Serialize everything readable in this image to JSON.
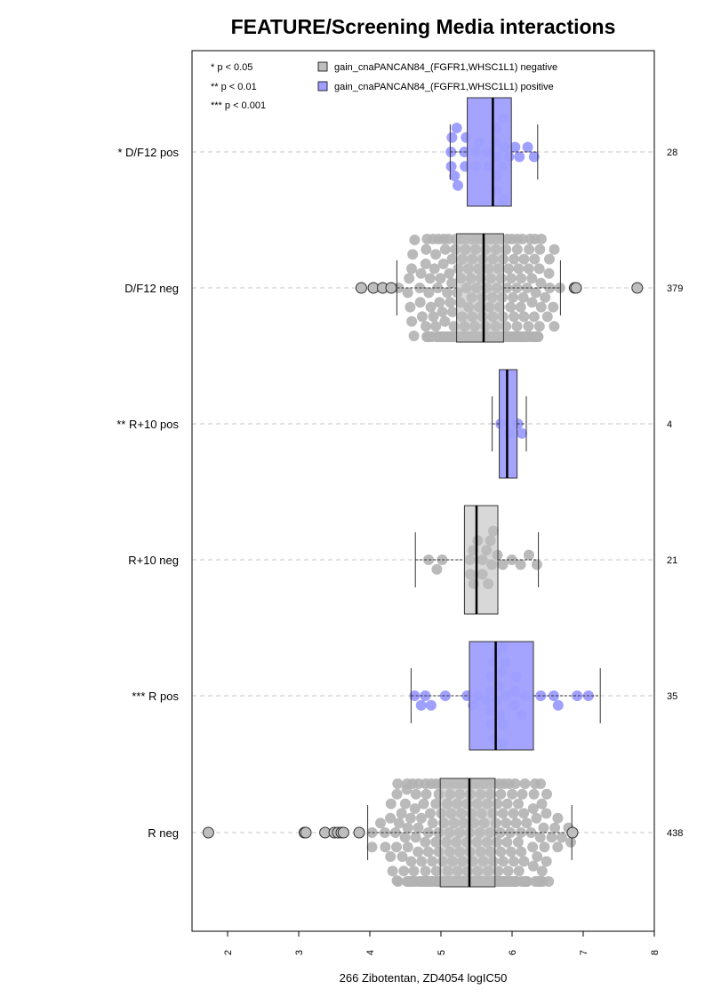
{
  "chart_data": {
    "type": "box-beeswarm",
    "title": "FEATURE/Screening Media interactions",
    "xlabel": "266 Zibotentan, ZD4054 logIC50",
    "xlim": [
      1.5,
      8.0
    ],
    "x_ticks": [
      2,
      3,
      4,
      5,
      6,
      7,
      8
    ],
    "x_tick_labels": [
      "2",
      "3",
      "4",
      "5",
      "6",
      "7",
      "8"
    ],
    "grid": "dashed horizontal lines at each group",
    "legend": {
      "placement": "top",
      "significance": [
        "* p < 0.05",
        "** p < 0.01",
        "*** p < 0.001"
      ],
      "entries": [
        {
          "label": "gain_cnaPANCAN84_(FGFR1,WHSC1L1) negative",
          "color": "#bebebe"
        },
        {
          "label": "gain_cnaPANCAN84_(FGFR1,WHSC1L1) positive",
          "color": "#9f9fff"
        }
      ]
    },
    "colors": {
      "negative": "#bebebe",
      "positive": "#9f9fff",
      "negative_points": "#b3b3b3",
      "positive_points": "#8080ff"
    },
    "groups": [
      {
        "label": "* D/F12 pos",
        "count": "28",
        "status": "positive",
        "whisker_low": 5.13,
        "q1": 5.37,
        "median": 5.73,
        "q3": 5.99,
        "whisker_high": 6.36,
        "outliers": []
      },
      {
        "label": "D/F12 neg",
        "count": "379",
        "status": "negative",
        "whisker_low": 4.38,
        "q1": 5.22,
        "median": 5.6,
        "q3": 5.88,
        "whisker_high": 6.68,
        "outliers": [
          3.88,
          4.05,
          4.18,
          4.3,
          6.88,
          6.9,
          7.76
        ]
      },
      {
        "label": "** R+10 pos",
        "count": "4",
        "status": "positive",
        "whisker_low": 5.72,
        "q1": 5.82,
        "median": 5.93,
        "q3": 6.07,
        "whisker_high": 6.2,
        "outliers": []
      },
      {
        "label": "R+10 neg",
        "count": "21",
        "status": "negative",
        "whisker_low": 4.64,
        "q1": 5.33,
        "median": 5.5,
        "q3": 5.8,
        "whisker_high": 6.37,
        "outliers": []
      },
      {
        "label": "*** R pos",
        "count": "35",
        "status": "positive",
        "whisker_low": 4.58,
        "q1": 5.4,
        "median": 5.77,
        "q3": 6.3,
        "whisker_high": 7.24,
        "outliers": []
      },
      {
        "label": "R neg",
        "count": "438",
        "status": "negative",
        "whisker_low": 3.97,
        "q1": 4.99,
        "median": 5.4,
        "q3": 5.76,
        "whisker_high": 6.84,
        "outliers": [
          1.73,
          3.08,
          3.1,
          3.37,
          3.5,
          3.55,
          3.6,
          3.63,
          3.85,
          6.85
        ]
      }
    ]
  }
}
